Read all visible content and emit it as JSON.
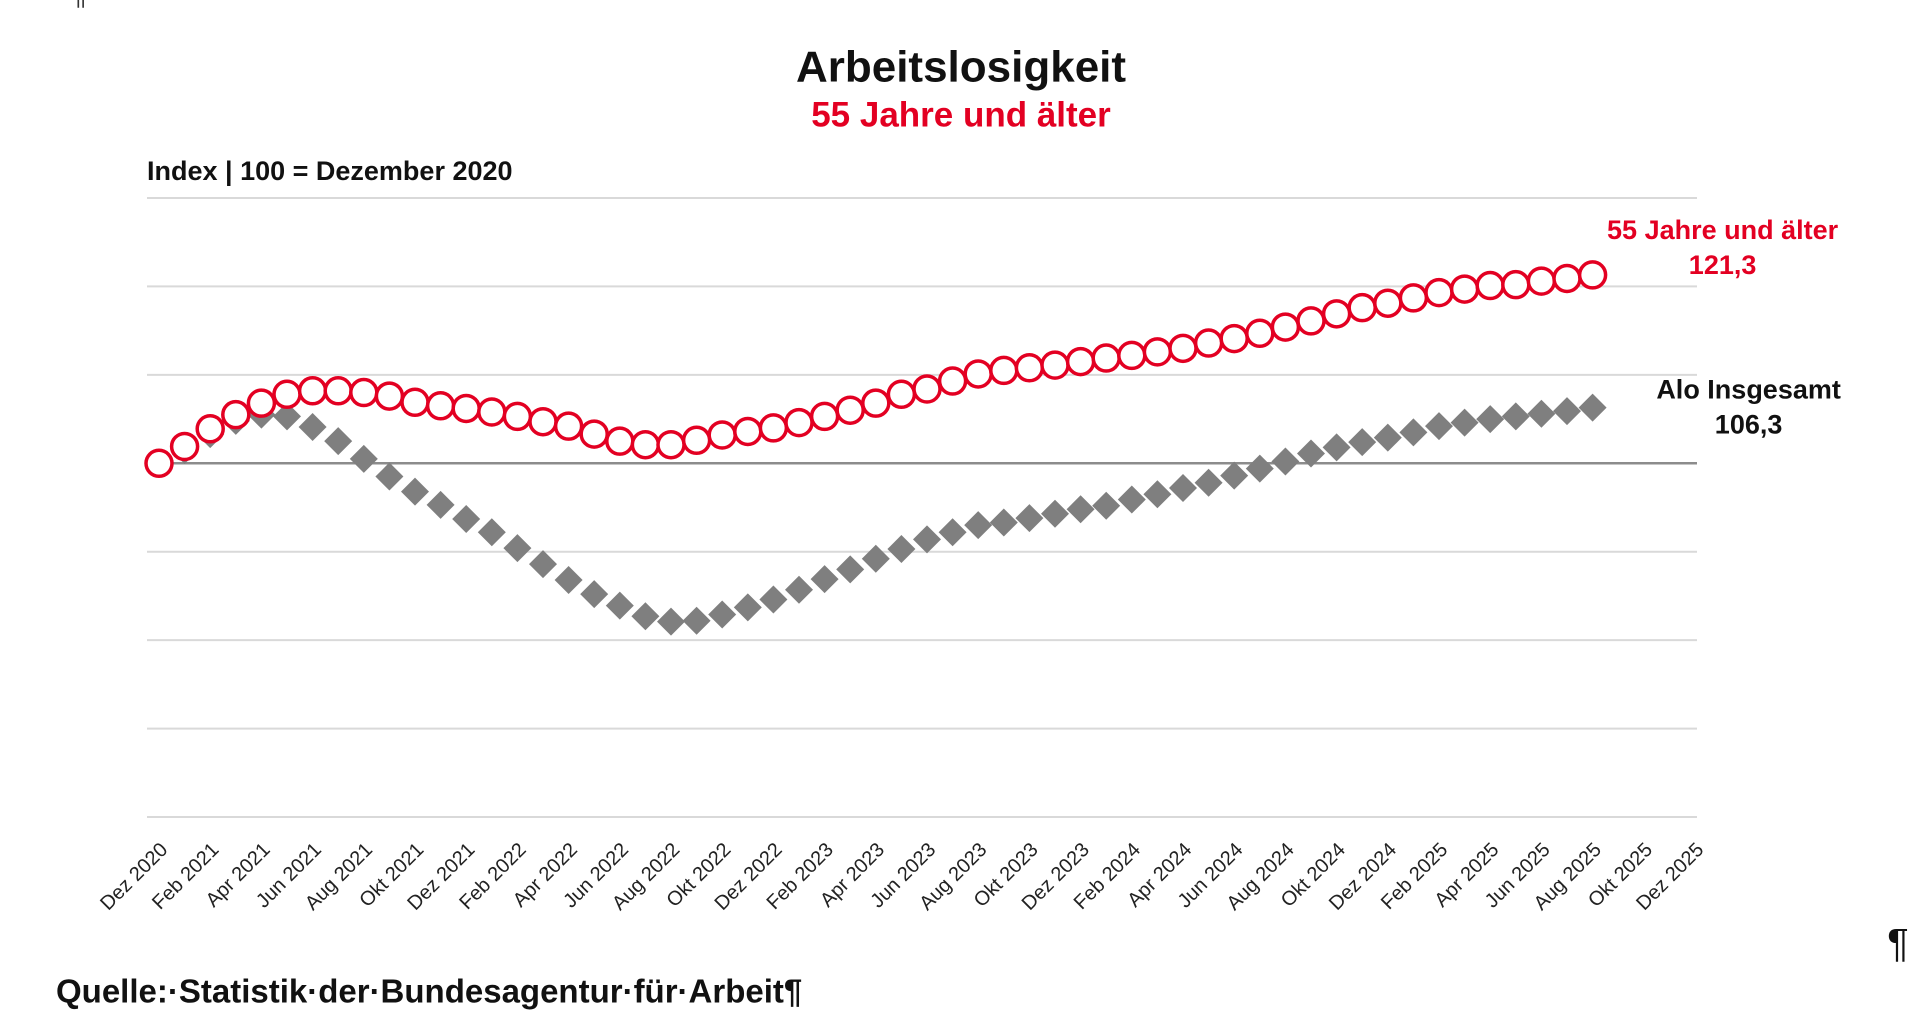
{
  "page": {
    "top_mark": "¶",
    "side_mark": "¶",
    "source": "Quelle:·Statistik·der·Bundesagentur·für·Arbeit¶"
  },
  "chart_data": {
    "type": "scatter",
    "title": "Arbeitslosigkeit",
    "subtitle": "55 Jahre und älter",
    "y_label": "Index | 100 = Dezember 2020",
    "categories": [
      "Dez 2020",
      null,
      "Feb 2021",
      null,
      "Apr 2021",
      null,
      "Jun 2021",
      null,
      "Aug 2021",
      null,
      "Okt 2021",
      null,
      "Dez 2021",
      null,
      "Feb 2022",
      null,
      "Apr 2022",
      null,
      "Jun 2022",
      null,
      "Aug 2022",
      null,
      "Okt 2022",
      null,
      "Dez 2022",
      null,
      "Feb 2023",
      null,
      "Apr 2023",
      null,
      "Jun 2023",
      null,
      "Aug 2023",
      null,
      "Okt 2023",
      null,
      "Dez 2023",
      null,
      "Feb 2024",
      null,
      "Apr 2024",
      null,
      "Jun 2024",
      null,
      "Aug 2024",
      null,
      "Okt 2024",
      null,
      "Dez 2024",
      null,
      "Feb 2025",
      null,
      "Apr 2025",
      null,
      "Jun 2025",
      null,
      "Aug 2025",
      null,
      "Okt 2025",
      null,
      "Dez 2025"
    ],
    "series": [
      {
        "name": "Alo Insgesamt",
        "color": "#7f7f7f",
        "marker": "diamond",
        "values": [
          100,
          101.5,
          103.3,
          104.8,
          105.5,
          105.3,
          104.1,
          102.5,
          100.5,
          98.5,
          96.8,
          95.3,
          93.7,
          92.2,
          90.4,
          88.6,
          86.8,
          85.2,
          83.9,
          82.7,
          82.1,
          82.2,
          82.9,
          83.7,
          84.6,
          85.7,
          86.9,
          88.0,
          89.2,
          90.3,
          91.4,
          92.2,
          93.0,
          93.3,
          93.8,
          94.3,
          94.8,
          95.2,
          95.9,
          96.5,
          97.2,
          97.8,
          98.6,
          99.4,
          100.2,
          101.1,
          101.8,
          102.4,
          102.9,
          103.5,
          104.2,
          104.6,
          105.0,
          105.3,
          105.6,
          105.9,
          106.3,
          null,
          null,
          null,
          null
        ],
        "value_labels": [
          null,
          null,
          null,
          null,
          null,
          null,
          null,
          null,
          null,
          null,
          null,
          null,
          null,
          null,
          null,
          null,
          null,
          null,
          null,
          null,
          null,
          null,
          null,
          null,
          null,
          null,
          null,
          null,
          null,
          null,
          null,
          null,
          null,
          null,
          null,
          null,
          null,
          null,
          null,
          null,
          null,
          null,
          null,
          null,
          null,
          null,
          null,
          null,
          null,
          null,
          null,
          null,
          null,
          null,
          null,
          null,
          "106,3",
          null,
          null,
          null,
          null
        ]
      },
      {
        "name": "55 Jahre und älter",
        "color": "#e30022",
        "marker": "circle",
        "values": [
          100,
          101.9,
          103.9,
          105.5,
          106.8,
          107.8,
          108.2,
          108.2,
          108.0,
          107.6,
          106.9,
          106.5,
          106.2,
          105.8,
          105.3,
          104.7,
          104.2,
          103.3,
          102.5,
          102.1,
          102.1,
          102.6,
          103.2,
          103.6,
          104.0,
          104.6,
          105.3,
          106.0,
          106.8,
          107.8,
          108.4,
          109.3,
          110.1,
          110.5,
          110.8,
          111.1,
          111.5,
          111.9,
          112.2,
          112.6,
          113.0,
          113.6,
          114.1,
          114.7,
          115.4,
          116.1,
          116.9,
          117.6,
          118.1,
          118.7,
          119.3,
          119.7,
          120.1,
          120.2,
          120.6,
          120.9,
          121.3,
          null,
          null,
          null,
          null
        ],
        "value_labels": [
          null,
          null,
          null,
          null,
          null,
          null,
          null,
          null,
          null,
          null,
          null,
          null,
          null,
          null,
          null,
          null,
          null,
          null,
          null,
          null,
          null,
          null,
          null,
          null,
          null,
          null,
          null,
          null,
          null,
          null,
          null,
          null,
          null,
          null,
          null,
          null,
          null,
          null,
          null,
          null,
          null,
          null,
          null,
          null,
          null,
          null,
          null,
          null,
          null,
          null,
          null,
          null,
          null,
          null,
          null,
          null,
          "121,3",
          null,
          null,
          null,
          null
        ]
      }
    ],
    "ylim": [
      60,
      130
    ],
    "yticks": [
      60,
      70,
      80,
      90,
      100,
      110,
      120,
      130
    ],
    "reference_line": 100,
    "grid": true
  }
}
